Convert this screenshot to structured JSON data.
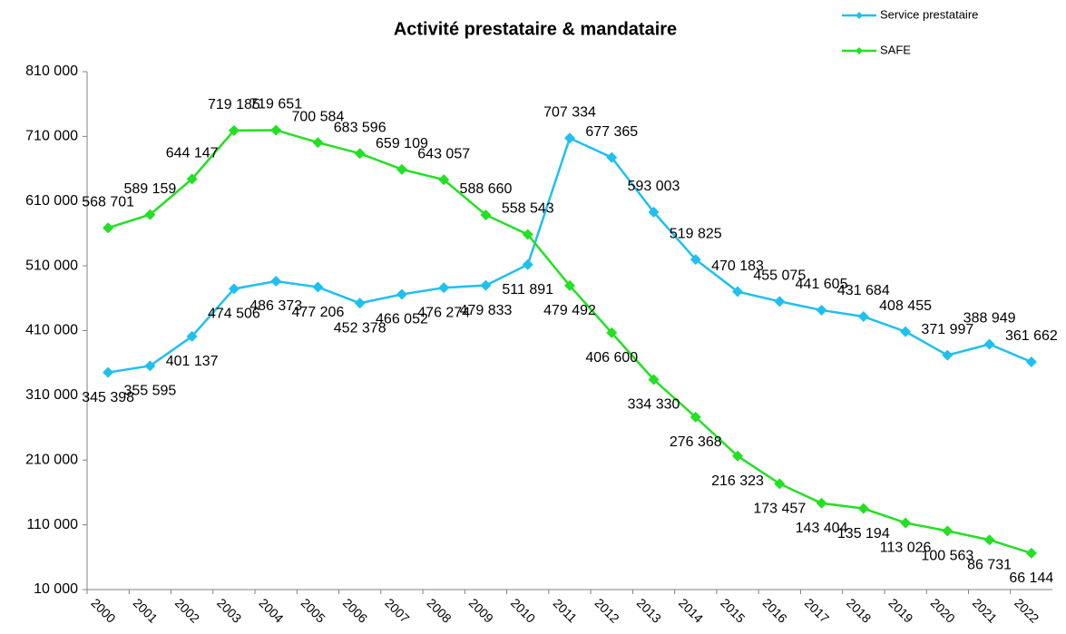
{
  "chart_data": {
    "type": "line",
    "title": "Activité prestataire & mandataire",
    "categories": [
      "2000",
      "2001",
      "2002",
      "2003",
      "2004",
      "2005",
      "2006",
      "2007",
      "2008",
      "2009",
      "2010",
      "2011",
      "2012",
      "2013",
      "2014",
      "2015",
      "2016",
      "2017",
      "2018",
      "2019",
      "2020",
      "2021",
      "2022"
    ],
    "series": [
      {
        "name": "Service prestataire",
        "color": "#1ec0f0",
        "values": [
          345398,
          355595,
          401137,
          474506,
          486373,
          477206,
          452378,
          466052,
          476274,
          479833,
          511891,
          707334,
          677365,
          593003,
          519825,
          470183,
          455075,
          441605,
          431684,
          408455,
          371997,
          388949,
          361662
        ],
        "value_labels": [
          "345 398",
          "355 595",
          "401 137",
          "474 506",
          "486 373",
          "477 206",
          "452 378",
          "466 052",
          "476 274",
          "479 833",
          "511 891",
          "707 334",
          "677 365",
          "593 003",
          "519 825",
          "470 183",
          "455 075",
          "441 605",
          "431 684",
          "408 455",
          "371 997",
          "388 949",
          "361 662"
        ]
      },
      {
        "name": "SAFE",
        "color": "#22e022",
        "values": [
          568701,
          589159,
          644147,
          719185,
          719651,
          700584,
          683596,
          659109,
          643057,
          588660,
          558543,
          479492,
          406600,
          334330,
          276368,
          216323,
          173457,
          143404,
          135194,
          113026,
          100563,
          86731,
          66144
        ],
        "value_labels": [
          "568 701",
          "589 159",
          "644 147",
          "719 185",
          "719 651",
          "700 584",
          "683 596",
          "659 109",
          "643 057",
          "588 660",
          "558 543",
          "479 492",
          "406 600",
          "334 330",
          "276 368",
          "216 323",
          "173 457",
          "143 404",
          "135 194",
          "113 026",
          "100 563",
          "86 731",
          "66 144"
        ]
      }
    ],
    "ylim": [
      10000,
      810000
    ],
    "yticks": [
      {
        "value": 10000,
        "label": "10 000"
      },
      {
        "value": 110000,
        "label": "110 000"
      },
      {
        "value": 210000,
        "label": "210 000"
      },
      {
        "value": 310000,
        "label": "310 000"
      },
      {
        "value": 410000,
        "label": "410 000"
      },
      {
        "value": 510000,
        "label": "510 000"
      },
      {
        "value": 610000,
        "label": "610 000"
      },
      {
        "value": 710000,
        "label": "710 000"
      },
      {
        "value": 810000,
        "label": "810 000"
      }
    ],
    "grid": false,
    "legend": "top-right"
  }
}
